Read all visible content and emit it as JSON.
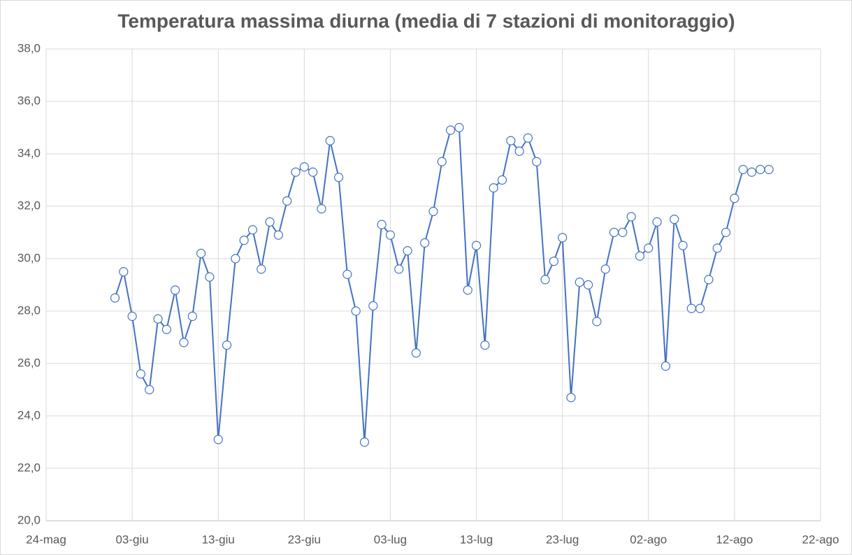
{
  "chart_data": {
    "type": "line",
    "title": "Temperatura massima diurna (media di 7 stazioni di monitoraggio)",
    "x": [
      "01-giu",
      "02-giu",
      "03-giu",
      "04-giu",
      "05-giu",
      "06-giu",
      "07-giu",
      "08-giu",
      "09-giu",
      "10-giu",
      "11-giu",
      "12-giu",
      "13-giu",
      "14-giu",
      "15-giu",
      "16-giu",
      "17-giu",
      "18-giu",
      "19-giu",
      "20-giu",
      "21-giu",
      "22-giu",
      "23-giu",
      "24-giu",
      "25-giu",
      "26-giu",
      "27-giu",
      "28-giu",
      "29-giu",
      "30-giu",
      "01-lug",
      "02-lug",
      "03-lug",
      "04-lug",
      "05-lug",
      "06-lug",
      "07-lug",
      "08-lug",
      "09-lug",
      "10-lug",
      "11-lug",
      "12-lug",
      "13-lug",
      "14-lug",
      "15-lug",
      "16-lug",
      "17-lug",
      "18-lug",
      "19-lug",
      "20-lug",
      "21-lug",
      "22-lug",
      "23-lug",
      "24-lug",
      "25-lug",
      "26-lug",
      "27-lug",
      "28-lug",
      "29-lug",
      "30-lug",
      "31-lug",
      "01-ago",
      "02-ago",
      "03-ago",
      "04-ago",
      "05-ago",
      "06-ago",
      "07-ago",
      "08-ago",
      "09-ago",
      "10-ago",
      "11-ago",
      "12-ago",
      "13-ago",
      "14-ago",
      "15-ago",
      "16-ago"
    ],
    "series": [
      {
        "color": "#4472c4",
        "values": [
          28.5,
          29.5,
          27.8,
          25.6,
          25.0,
          27.7,
          27.3,
          28.8,
          26.8,
          27.8,
          30.2,
          29.3,
          23.1,
          26.7,
          30.0,
          30.7,
          31.1,
          29.6,
          31.4,
          30.9,
          32.2,
          33.3,
          33.5,
          33.3,
          31.9,
          34.5,
          33.1,
          29.4,
          28.0,
          23.0,
          28.2,
          31.3,
          30.9,
          29.6,
          30.3,
          26.4,
          30.6,
          31.8,
          33.7,
          34.9,
          35.0,
          28.8,
          30.5,
          26.7,
          32.7,
          33.0,
          34.5,
          34.1,
          34.6,
          33.7,
          29.2,
          29.9,
          30.8,
          24.7,
          29.1,
          29.0,
          27.6,
          29.6,
          31.0,
          31.0,
          31.6,
          30.1,
          30.4,
          31.4,
          25.9,
          31.5,
          30.5,
          28.1,
          28.1,
          29.2,
          30.4,
          31.0,
          32.3,
          33.4,
          33.3,
          33.4,
          33.4
        ]
      }
    ],
    "xlim": [
      "24-mag",
      "22-ago"
    ],
    "xticks": [
      "24-mag",
      "03-giu",
      "13-giu",
      "23-giu",
      "03-lug",
      "13-lug",
      "23-lug",
      "02-ago",
      "12-ago",
      "22-ago"
    ],
    "ylim": [
      20,
      38
    ],
    "yticks": [
      {
        "value": 20,
        "label": "20,0"
      },
      {
        "value": 22,
        "label": "22,0"
      },
      {
        "value": 24,
        "label": "24,0"
      },
      {
        "value": 26,
        "label": "26,0"
      },
      {
        "value": 28,
        "label": "28,0"
      },
      {
        "value": 30,
        "label": "30,0"
      },
      {
        "value": 32,
        "label": "32,0"
      },
      {
        "value": 34,
        "label": "34,0"
      },
      {
        "value": 36,
        "label": "36,0"
      },
      {
        "value": 38,
        "label": "38,0"
      }
    ],
    "grid": true
  }
}
